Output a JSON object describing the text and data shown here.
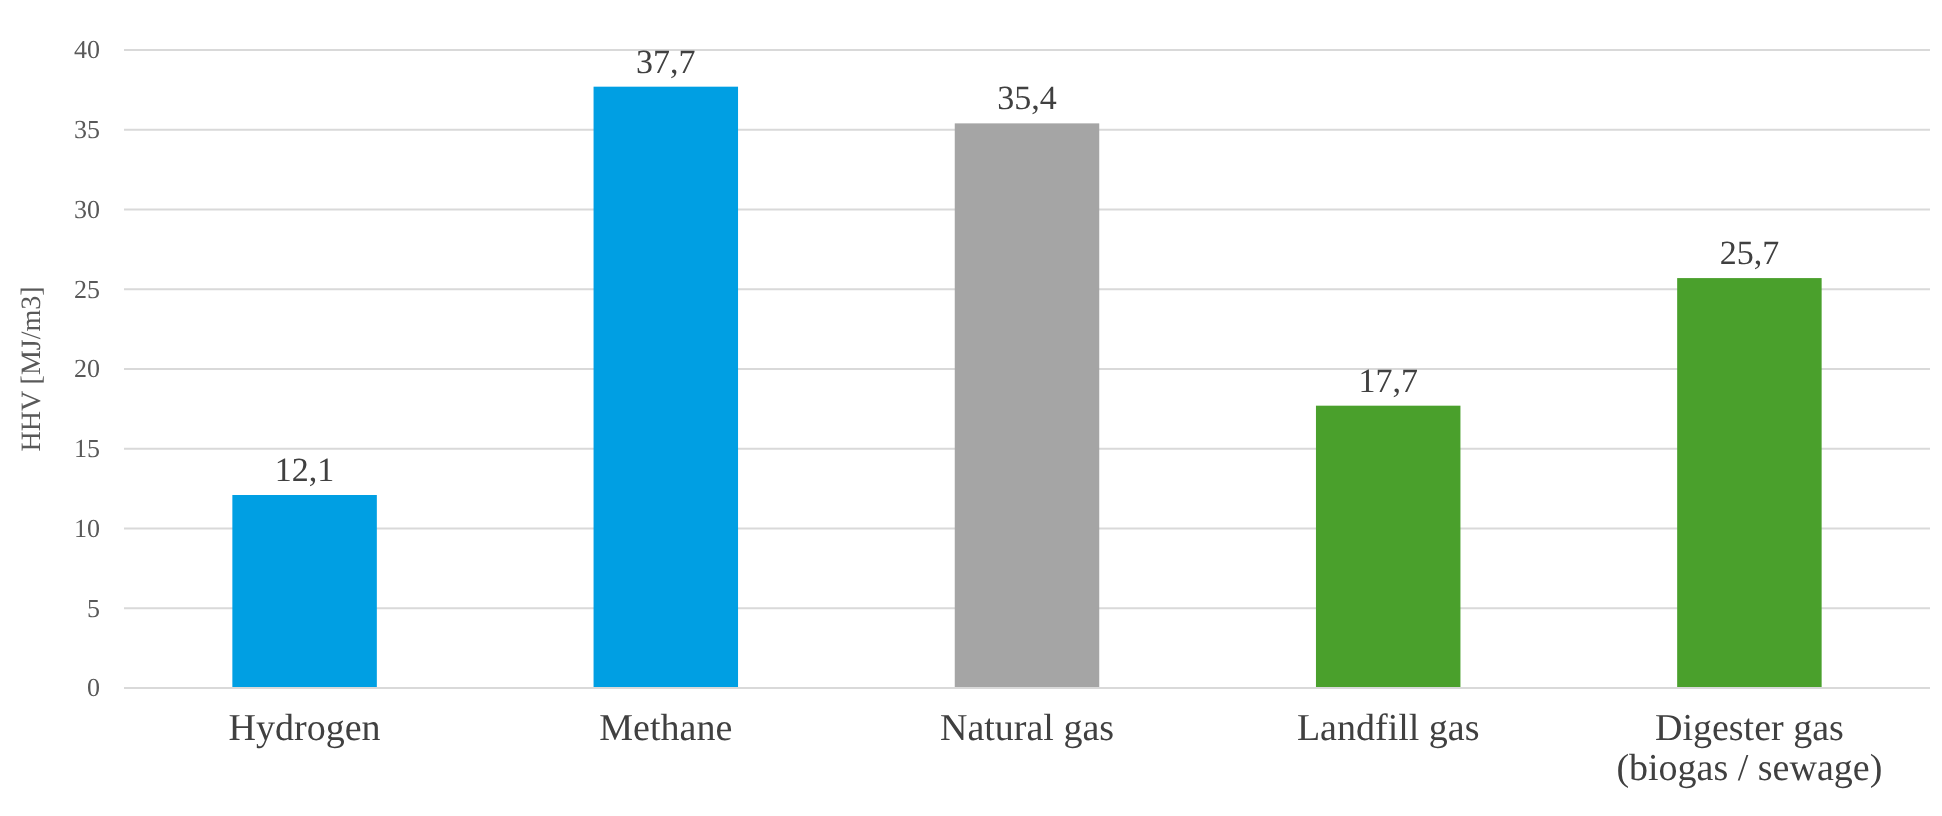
{
  "chart_data": {
    "type": "bar",
    "ylabel": "HHV [MJ/m3]",
    "categories": [
      "Hydrogen",
      "Methane",
      "Natural gas",
      "Landfill gas",
      "Digester gas (biogas / sewage)"
    ],
    "values": [
      12.1,
      37.7,
      35.4,
      17.7,
      25.7
    ],
    "colors": [
      "#009fe3",
      "#009fe3",
      "#a5a5a5",
      "#4aa02c",
      "#4aa02c"
    ],
    "value_labels": [
      "12,1",
      "37,7",
      "35,4",
      "17,7",
      "25,7"
    ],
    "ylim": [
      0,
      40
    ],
    "yticks": [
      0,
      5,
      10,
      15,
      20,
      25,
      30,
      35,
      40
    ],
    "grid": "y"
  }
}
